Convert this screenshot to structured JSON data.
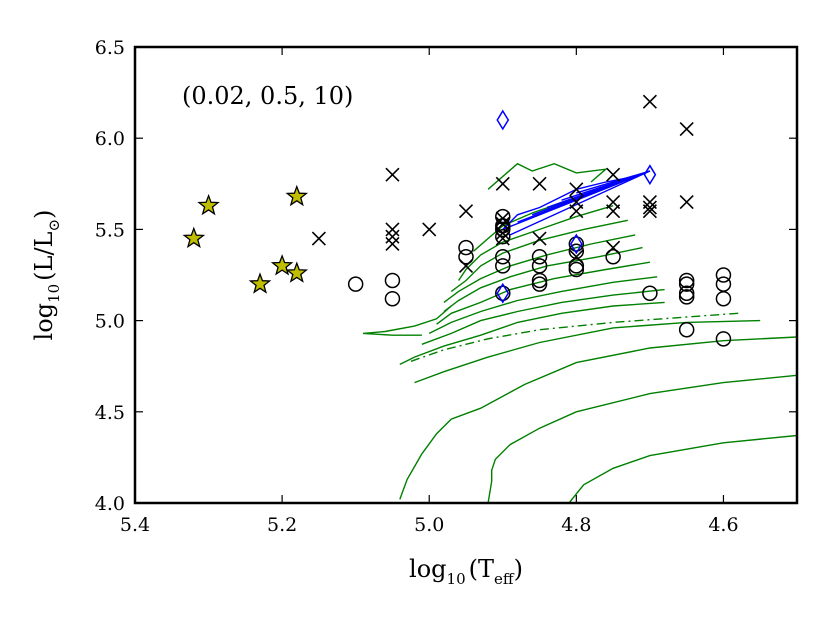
{
  "chart_data": {
    "type": "scatter",
    "title": "",
    "annotation": "(0.02, 0.5, 10)",
    "xlabel": {
      "base": "log",
      "sub": "10",
      "arg": "(T",
      "arg_sub": "eff",
      "close": ")"
    },
    "ylabel": {
      "base": "log",
      "sub": "10",
      "arg": "(L/L",
      "arg_sub": "⊙",
      "close": ")"
    },
    "xlim": [
      5.4,
      4.5
    ],
    "ylim": [
      4.0,
      6.5
    ],
    "xticks": [
      "5.4",
      "5.2",
      "5.0",
      "4.8",
      "4.6"
    ],
    "xtick_values": [
      5.4,
      5.2,
      5.0,
      4.8,
      4.6
    ],
    "yticks": [
      "4.0",
      "4.5",
      "5.0",
      "5.5",
      "6.0",
      "6.5"
    ],
    "ytick_values": [
      4.0,
      4.5,
      5.0,
      5.5,
      6.0,
      6.5
    ],
    "grid": false,
    "colors": {
      "stars": "#bfbf00",
      "diamonds": "#0000ff",
      "tracks": "#008000",
      "blue_tracks": "#0000ff",
      "crosses": "#000000",
      "circles": "#000000"
    },
    "series": [
      {
        "marker": "star",
        "points": [
          [
            5.32,
            5.45
          ],
          [
            5.3,
            5.63
          ],
          [
            5.18,
            5.68
          ],
          [
            5.2,
            5.3
          ],
          [
            5.18,
            5.26
          ],
          [
            5.23,
            5.2
          ]
        ]
      },
      {
        "marker": "cross",
        "points": [
          [
            5.15,
            5.45
          ],
          [
            5.05,
            5.8
          ],
          [
            5.05,
            5.5
          ],
          [
            5.05,
            5.46
          ],
          [
            5.05,
            5.42
          ],
          [
            5.0,
            5.5
          ],
          [
            4.95,
            5.6
          ],
          [
            4.95,
            5.3
          ],
          [
            4.9,
            5.75
          ],
          [
            4.9,
            5.56
          ],
          [
            4.9,
            5.53
          ],
          [
            4.9,
            5.48
          ],
          [
            4.9,
            5.45
          ],
          [
            4.85,
            5.75
          ],
          [
            4.85,
            5.45
          ],
          [
            4.8,
            5.72
          ],
          [
            4.8,
            5.65
          ],
          [
            4.8,
            5.6
          ],
          [
            4.8,
            5.35
          ],
          [
            4.75,
            5.8
          ],
          [
            4.75,
            5.65
          ],
          [
            4.75,
            5.6
          ],
          [
            4.75,
            5.4
          ],
          [
            4.7,
            6.2
          ],
          [
            4.7,
            5.65
          ],
          [
            4.7,
            5.62
          ],
          [
            4.7,
            5.6
          ],
          [
            4.65,
            6.05
          ],
          [
            4.65,
            5.65
          ]
        ]
      },
      {
        "marker": "circle",
        "points": [
          [
            5.1,
            5.2
          ],
          [
            5.05,
            5.22
          ],
          [
            5.05,
            5.12
          ],
          [
            4.95,
            5.4
          ],
          [
            4.95,
            5.35
          ],
          [
            4.9,
            5.57
          ],
          [
            4.9,
            5.52
          ],
          [
            4.9,
            5.5
          ],
          [
            4.9,
            5.46
          ],
          [
            4.9,
            5.35
          ],
          [
            4.9,
            5.3
          ],
          [
            4.9,
            5.15
          ],
          [
            4.85,
            5.35
          ],
          [
            4.85,
            5.3
          ],
          [
            4.85,
            5.22
          ],
          [
            4.85,
            5.2
          ],
          [
            4.8,
            5.42
          ],
          [
            4.8,
            5.38
          ],
          [
            4.8,
            5.3
          ],
          [
            4.8,
            5.28
          ],
          [
            4.75,
            5.35
          ],
          [
            4.7,
            5.15
          ],
          [
            4.65,
            5.22
          ],
          [
            4.65,
            5.2
          ],
          [
            4.65,
            5.15
          ],
          [
            4.65,
            5.13
          ],
          [
            4.65,
            4.95
          ],
          [
            4.6,
            5.25
          ],
          [
            4.6,
            5.2
          ],
          [
            4.6,
            5.12
          ],
          [
            4.6,
            4.9
          ]
        ]
      },
      {
        "marker": "diamond",
        "points": [
          [
            4.9,
            6.1
          ],
          [
            4.9,
            5.15
          ],
          [
            4.8,
            5.42
          ],
          [
            4.7,
            5.8
          ]
        ]
      }
    ],
    "tracks": [
      {
        "color": "green",
        "points": [
          [
            4.5,
            4.91
          ],
          [
            4.6,
            4.89
          ],
          [
            4.7,
            4.85
          ],
          [
            4.8,
            4.77
          ],
          [
            4.87,
            4.65
          ],
          [
            4.93,
            4.52
          ],
          [
            4.97,
            4.46
          ],
          [
            4.99,
            4.38
          ],
          [
            5.01,
            4.27
          ],
          [
            5.03,
            4.13
          ],
          [
            5.04,
            4.02
          ]
        ]
      },
      {
        "color": "green",
        "points": [
          [
            4.5,
            4.7
          ],
          [
            4.6,
            4.66
          ],
          [
            4.7,
            4.6
          ],
          [
            4.8,
            4.5
          ],
          [
            4.85,
            4.41
          ],
          [
            4.89,
            4.32
          ],
          [
            4.91,
            4.24
          ],
          [
            4.915,
            4.18
          ],
          [
            4.915,
            4.12
          ],
          [
            4.92,
            4.0
          ]
        ]
      },
      {
        "color": "green",
        "points": [
          [
            4.5,
            4.37
          ],
          [
            4.6,
            4.33
          ],
          [
            4.7,
            4.26
          ],
          [
            4.75,
            4.19
          ],
          [
            4.79,
            4.1
          ],
          [
            4.81,
            4.0
          ]
        ]
      },
      {
        "color": "green",
        "points": [
          [
            4.55,
            5.0
          ],
          [
            4.65,
            4.99
          ],
          [
            4.75,
            4.96
          ],
          [
            4.85,
            4.88
          ],
          [
            4.92,
            4.8
          ],
          [
            4.98,
            4.72
          ],
          [
            5.02,
            4.66
          ]
        ]
      },
      {
        "color": "green",
        "dashed": true,
        "points": [
          [
            4.58,
            5.04
          ],
          [
            4.65,
            5.02
          ],
          [
            4.75,
            4.99
          ],
          [
            4.85,
            4.95
          ],
          [
            4.92,
            4.9
          ],
          [
            4.98,
            4.84
          ],
          [
            5.03,
            4.77
          ]
        ]
      },
      {
        "color": "green",
        "points": [
          [
            4.68,
            5.1
          ],
          [
            4.75,
            5.08
          ],
          [
            4.82,
            5.04
          ],
          [
            4.88,
            4.99
          ],
          [
            4.93,
            4.92
          ],
          [
            4.98,
            4.86
          ],
          [
            5.02,
            4.8
          ],
          [
            5.04,
            4.76
          ]
        ]
      },
      {
        "color": "green",
        "points": [
          [
            4.68,
            5.17
          ],
          [
            4.75,
            5.14
          ],
          [
            4.82,
            5.1
          ],
          [
            4.88,
            5.05
          ],
          [
            4.93,
            5.0
          ],
          [
            4.97,
            4.93
          ],
          [
            5.01,
            4.87
          ]
        ]
      },
      {
        "color": "green",
        "points": [
          [
            4.69,
            5.24
          ],
          [
            4.75,
            5.21
          ],
          [
            4.82,
            5.16
          ],
          [
            4.88,
            5.11
          ],
          [
            4.93,
            5.05
          ],
          [
            4.97,
            4.99
          ],
          [
            5.0,
            4.93
          ]
        ]
      },
      {
        "color": "green",
        "points": [
          [
            4.7,
            5.32
          ],
          [
            4.76,
            5.28
          ],
          [
            4.83,
            5.23
          ],
          [
            4.89,
            5.17
          ],
          [
            4.93,
            5.1
          ],
          [
            4.97,
            5.04
          ],
          [
            4.99,
            4.98
          ]
        ]
      },
      {
        "color": "green",
        "points": [
          [
            4.71,
            5.4
          ],
          [
            4.77,
            5.35
          ],
          [
            4.84,
            5.3
          ],
          [
            4.89,
            5.24
          ],
          [
            4.93,
            5.18
          ],
          [
            4.96,
            5.11
          ],
          [
            4.98,
            5.05
          ]
        ]
      },
      {
        "color": "green",
        "points": [
          [
            4.72,
            5.47
          ],
          [
            4.78,
            5.42
          ],
          [
            4.84,
            5.36
          ],
          [
            4.89,
            5.3
          ],
          [
            4.93,
            5.23
          ],
          [
            4.96,
            5.16
          ],
          [
            4.98,
            5.1
          ]
        ]
      },
      {
        "color": "green",
        "points": [
          [
            4.73,
            5.55
          ],
          [
            4.79,
            5.5
          ],
          [
            4.85,
            5.44
          ],
          [
            4.9,
            5.37
          ],
          [
            4.93,
            5.3
          ],
          [
            4.95,
            5.22
          ],
          [
            4.97,
            5.16
          ]
        ]
      },
      {
        "color": "green",
        "points": [
          [
            4.75,
            5.63
          ],
          [
            4.8,
            5.57
          ],
          [
            4.85,
            5.5
          ],
          [
            4.9,
            5.43
          ],
          [
            4.93,
            5.36
          ],
          [
            4.95,
            5.28
          ],
          [
            4.96,
            5.22
          ]
        ]
      },
      {
        "color": "green",
        "points": [
          [
            4.77,
            5.72
          ],
          [
            4.81,
            5.66
          ],
          [
            4.86,
            5.59
          ],
          [
            4.9,
            5.52
          ],
          [
            4.92,
            5.45
          ],
          [
            4.94,
            5.38
          ]
        ]
      },
      {
        "color": "green",
        "points": [
          [
            4.92,
            5.72
          ],
          [
            4.88,
            5.86
          ],
          [
            4.86,
            5.82
          ],
          [
            4.83,
            5.86
          ],
          [
            4.8,
            5.81
          ],
          [
            4.76,
            5.83
          ],
          [
            4.78,
            5.76
          ]
        ]
      },
      {
        "color": "green",
        "points": [
          [
            4.97,
            5.08
          ],
          [
            4.99,
            5.01
          ],
          [
            5.02,
            4.97
          ],
          [
            5.06,
            4.94
          ],
          [
            5.09,
            4.93
          ],
          [
            5.05,
            4.92
          ],
          [
            5.01,
            4.92
          ]
        ]
      },
      {
        "color": "blue",
        "points": [
          [
            4.7,
            5.82
          ],
          [
            4.9,
            5.5
          ]
        ]
      },
      {
        "color": "blue",
        "points": [
          [
            4.7,
            5.82
          ],
          [
            4.88,
            5.54
          ]
        ]
      },
      {
        "color": "blue",
        "points": [
          [
            4.7,
            5.82
          ],
          [
            4.86,
            5.58
          ]
        ]
      },
      {
        "color": "blue",
        "points": [
          [
            4.7,
            5.82
          ],
          [
            4.84,
            5.62
          ]
        ]
      },
      {
        "color": "blue",
        "points": [
          [
            4.7,
            5.82
          ],
          [
            4.82,
            5.66
          ]
        ]
      },
      {
        "color": "blue",
        "points": [
          [
            4.7,
            5.82
          ],
          [
            4.8,
            5.7
          ]
        ]
      },
      {
        "color": "blue",
        "points": [
          [
            4.7,
            5.82
          ],
          [
            4.89,
            5.47
          ]
        ]
      },
      {
        "color": "blue",
        "points": [
          [
            4.9,
            5.5
          ],
          [
            4.88,
            5.58
          ],
          [
            4.85,
            5.62
          ],
          [
            4.82,
            5.68
          ],
          [
            4.8,
            5.72
          ],
          [
            4.76,
            5.76
          ],
          [
            4.72,
            5.79
          ],
          [
            4.7,
            5.82
          ]
        ]
      }
    ]
  }
}
